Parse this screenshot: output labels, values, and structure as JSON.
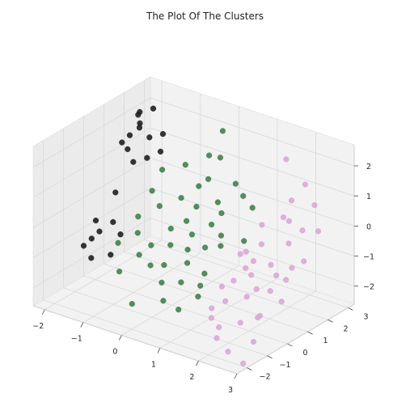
{
  "chart_data": {
    "type": "scatter",
    "projection": "3d",
    "title": "The Plot Of The Clusters",
    "xlabel": "",
    "ylabel": "",
    "zlabel": "",
    "xlim": [
      -2.3,
      3.0
    ],
    "ylim": [
      -2.5,
      3.3
    ],
    "zlim": [
      -2.6,
      2.7
    ],
    "x_ticks": [
      "−2",
      "−1",
      "0",
      "1",
      "2",
      "3"
    ],
    "y_ticks": [
      "−2",
      "−1",
      "0",
      "1",
      "2",
      "3"
    ],
    "z_ticks": [
      "−2",
      "−1",
      "0",
      "1",
      "2"
    ],
    "grid": true,
    "pane_color": "#f2f2f2",
    "grid_color": "#d9d9d9",
    "series": [
      {
        "color": "#1a1a1a",
        "points": [
          [
            -2.0,
            2.2,
            2.1
          ],
          [
            -2.1,
            2.4,
            1.6
          ],
          [
            -1.8,
            2.3,
            1.3
          ],
          [
            -2.2,
            2.5,
            1.8
          ],
          [
            -1.9,
            2.0,
            1.7
          ],
          [
            -1.7,
            2.3,
            2.3
          ],
          [
            -1.5,
            2.4,
            1.5
          ],
          [
            -2.0,
            1.6,
            1.1
          ],
          [
            -1.6,
            1.8,
            0.9
          ],
          [
            -2.1,
            1.9,
            1.4
          ],
          [
            -1.8,
            1.5,
            0.8
          ],
          [
            -2.2,
            1.7,
            1.2
          ],
          [
            -1.3,
            1.9,
            1.2
          ],
          [
            -2.0,
            1.0,
            -0.1
          ],
          [
            -2.3,
            0.6,
            -1.0
          ],
          [
            -2.1,
            0.4,
            -1.2
          ],
          [
            -2.2,
            0.2,
            -1.4
          ],
          [
            -2.3,
            0.0,
            -1.6
          ],
          [
            -1.8,
            0.5,
            -0.8
          ],
          [
            -1.5,
            0.3,
            -1.0
          ],
          [
            -1.6,
            0.0,
            -1.6
          ],
          [
            -2.0,
            -0.2,
            -1.8
          ]
        ]
      },
      {
        "color": "#3d7d4a",
        "points": [
          [
            0.0,
            2.5,
            2.2
          ],
          [
            0.2,
            2.0,
            1.6
          ],
          [
            -0.3,
            2.4,
            1.3
          ],
          [
            0.1,
            1.6,
            1.0
          ],
          [
            0.6,
            2.0,
            0.9
          ],
          [
            -0.2,
            1.7,
            0.6
          ],
          [
            0.4,
            1.5,
            0.4
          ],
          [
            0.9,
            1.8,
            0.7
          ],
          [
            0.0,
            1.2,
            0.2
          ],
          [
            -0.5,
            1.4,
            0.2
          ],
          [
            0.5,
            1.0,
            -0.1
          ],
          [
            -0.1,
            0.9,
            -0.2
          ],
          [
            0.2,
            0.6,
            -0.4
          ],
          [
            0.8,
            0.9,
            -0.3
          ],
          [
            -0.4,
            0.7,
            -0.5
          ],
          [
            0.3,
            0.2,
            -0.7
          ],
          [
            -0.2,
            0.3,
            -0.8
          ],
          [
            0.7,
            0.3,
            -0.5
          ],
          [
            1.0,
            0.5,
            -0.4
          ],
          [
            0.5,
            -0.2,
            -0.9
          ],
          [
            0.0,
            -0.4,
            -1.1
          ],
          [
            1.0,
            -0.3,
            -1.0
          ],
          [
            -0.6,
            0.1,
            -0.9
          ],
          [
            0.2,
            -0.9,
            -1.4
          ],
          [
            0.6,
            -0.7,
            -1.3
          ],
          [
            1.1,
            -0.7,
            -1.2
          ],
          [
            -0.3,
            -0.5,
            -1.2
          ],
          [
            0.4,
            -1.2,
            -1.8
          ],
          [
            -0.9,
            -0.9,
            -1.5
          ],
          [
            0.9,
            -1.4,
            -1.8
          ],
          [
            1.2,
            -1.0,
            -1.4
          ],
          [
            -1.1,
            1.1,
            0.3
          ],
          [
            -1.2,
            0.6,
            -0.4
          ],
          [
            -0.8,
            0.9,
            0.0
          ],
          [
            -1.0,
            0.2,
            -0.7
          ],
          [
            -1.3,
            -0.2,
            -1.0
          ],
          [
            -0.7,
            -0.3,
            -1.1
          ],
          [
            -1.1,
            1.6,
            0.8
          ],
          [
            -0.6,
            1.8,
            1.1
          ],
          [
            1.3,
            1.5,
            0.6
          ],
          [
            1.5,
            0.7,
            -0.1
          ],
          [
            -0.2,
            -1.6,
            -2.0
          ],
          [
            0.6,
            1.3,
            0.2
          ]
        ]
      },
      {
        "color": "#d9a6d4",
        "points": [
          [
            1.6,
            2.6,
            1.9
          ],
          [
            2.2,
            2.4,
            1.4
          ],
          [
            2.6,
            2.1,
            1.0
          ],
          [
            2.0,
            1.7,
            0.5
          ],
          [
            2.8,
            1.9,
            0.3
          ],
          [
            2.4,
            1.2,
            0.0
          ],
          [
            1.8,
            1.0,
            -0.2
          ],
          [
            2.9,
            1.0,
            -0.3
          ],
          [
            1.5,
            0.8,
            -0.5
          ],
          [
            2.2,
            0.7,
            -0.6
          ],
          [
            2.7,
            0.5,
            -0.8
          ],
          [
            1.9,
            0.3,
            -0.9
          ],
          [
            2.5,
            0.1,
            -1.1
          ],
          [
            1.6,
            0.0,
            -1.1
          ],
          [
            2.9,
            -0.1,
            -1.2
          ],
          [
            2.1,
            -0.3,
            -1.3
          ],
          [
            1.7,
            -0.6,
            -1.5
          ],
          [
            2.6,
            -0.6,
            -1.6
          ],
          [
            2.3,
            -1.0,
            -1.8
          ],
          [
            1.9,
            -1.3,
            -2.0
          ],
          [
            2.8,
            -1.3,
            -2.1
          ],
          [
            2.4,
            -1.8,
            -2.4
          ],
          [
            2.9,
            -2.0,
            -2.5
          ],
          [
            1.6,
            1.4,
            0.2
          ],
          [
            2.0,
            2.1,
            0.9
          ],
          [
            1.4,
            -0.2,
            -1.3
          ],
          [
            2.6,
            1.5,
            0.4
          ],
          [
            1.8,
            0.6,
            -0.6
          ],
          [
            2.3,
            -0.2,
            -1.0
          ],
          [
            2.7,
            -0.9,
            -1.5
          ],
          [
            1.5,
            -0.9,
            -1.7
          ],
          [
            2.2,
            1.6,
            0.5
          ],
          [
            1.7,
            0.4,
            -0.8
          ],
          [
            2.5,
            0.4,
            -0.7
          ],
          [
            2.0,
            -1.6,
            -2.2
          ],
          [
            1.6,
            -1.1,
            -1.9
          ],
          [
            2.8,
            0.6,
            -0.4
          ],
          [
            1.3,
            0.9,
            -0.7
          ]
        ]
      }
    ]
  }
}
